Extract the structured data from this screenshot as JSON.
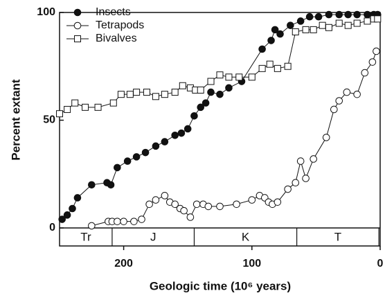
{
  "chart_data": {
    "type": "line",
    "xlabel": "Geologic time (10⁶ years)",
    "ylabel": "Percent extant",
    "xlim": [
      250,
      0
    ],
    "ylim": [
      0,
      100
    ],
    "xticks": [
      200,
      100,
      0
    ],
    "yticks": [
      0,
      50,
      100
    ],
    "periods": [
      {
        "label": "Tr",
        "start": 250,
        "end": 209
      },
      {
        "label": "J",
        "start": 209,
        "end": 145
      },
      {
        "label": "K",
        "start": 145,
        "end": 65
      },
      {
        "label": "T",
        "start": 65,
        "end": 1
      }
    ],
    "series": [
      {
        "name": "Insects",
        "color": "#111",
        "marker": "filled-circle",
        "x": [
          248,
          244,
          240,
          236,
          225,
          213,
          210,
          205,
          197,
          190,
          183,
          175,
          168,
          160,
          155,
          150,
          145,
          140,
          136,
          132,
          125,
          118,
          108,
          92,
          85,
          82,
          78,
          70,
          62,
          55,
          48,
          40,
          32,
          25,
          18,
          10,
          5,
          2
        ],
        "values": [
          4,
          6,
          9,
          14,
          20,
          21,
          20,
          28,
          31,
          33,
          35,
          38,
          40,
          43,
          44,
          46,
          52,
          56,
          58,
          63,
          62,
          65,
          68,
          83,
          87,
          92,
          90,
          94,
          96,
          98,
          98,
          99,
          99,
          99,
          99,
          99,
          99,
          99
        ]
      },
      {
        "name": "Tetrapods",
        "color": "#111",
        "marker": "open-circle",
        "x": [
          225,
          212,
          209,
          205,
          200,
          192,
          186,
          180,
          175,
          168,
          164,
          160,
          156,
          153,
          148,
          143,
          138,
          134,
          125,
          112,
          100,
          94,
          90,
          87,
          84,
          80,
          72,
          66,
          62,
          58,
          52,
          42,
          36,
          32,
          26,
          18,
          12,
          6,
          3
        ],
        "values": [
          1,
          3,
          3,
          3,
          3,
          3,
          4,
          11,
          13,
          15,
          12,
          11,
          9,
          8,
          5,
          11,
          11,
          10,
          10,
          11,
          13,
          15,
          14,
          12,
          11,
          12,
          18,
          21,
          31,
          23,
          32,
          42,
          55,
          59,
          63,
          62,
          72,
          77,
          82
        ]
      },
      {
        "name": "Bivalves",
        "color": "#111",
        "marker": "open-square",
        "x": [
          250,
          244,
          238,
          230,
          220,
          208,
          202,
          195,
          190,
          182,
          175,
          168,
          160,
          154,
          148,
          144,
          140,
          132,
          125,
          118,
          110,
          100,
          92,
          86,
          80,
          72,
          66,
          58,
          52,
          45,
          40,
          32,
          25,
          18,
          10,
          5,
          2
        ],
        "values": [
          53,
          55,
          58,
          56,
          56,
          58,
          62,
          62,
          63,
          63,
          61,
          62,
          63,
          66,
          65,
          64,
          64,
          68,
          71,
          70,
          70,
          70,
          74,
          76,
          74,
          75,
          91,
          92,
          92,
          94,
          93,
          95,
          94,
          95,
          96,
          97,
          97
        ]
      }
    ]
  }
}
